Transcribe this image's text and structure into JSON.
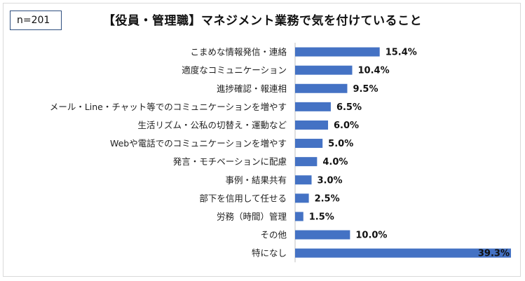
{
  "n_label": "n=201",
  "chart_data": {
    "type": "bar",
    "orientation": "horizontal",
    "title": "【役員・管理職】マネジメント業務で気を付けていること",
    "categories": [
      "こまめな情報発信・連絡",
      "適度なコミュニケーション",
      "進捗確認・報連相",
      "メール・Line・チャット等でのコミュニケーションを増やす",
      "生活リズム・公私の切替え・運動など",
      "Webや電話でのコミュニケーションを増やす",
      "発言・モチベーションに配慮",
      "事例・結果共有",
      "部下を信用して任せる",
      "労務（時間）管理",
      "その他",
      "特になし"
    ],
    "values": [
      15.4,
      10.4,
      9.5,
      6.5,
      6.0,
      5.0,
      4.0,
      3.0,
      2.5,
      1.5,
      10.0,
      39.3
    ],
    "value_labels": [
      "15.4%",
      "10.4%",
      "9.5%",
      "6.5%",
      "6.0%",
      "5.0%",
      "4.0%",
      "3.0%",
      "2.5%",
      "1.5%",
      "10.0%",
      "39.3%"
    ],
    "unit": "%",
    "bar_color": "#4472c4",
    "grid": false,
    "legend": "none"
  }
}
